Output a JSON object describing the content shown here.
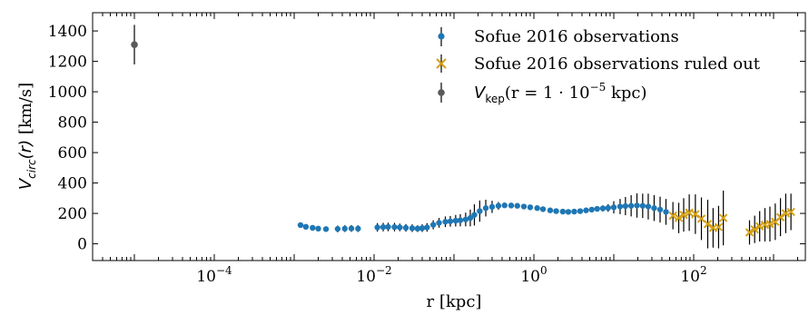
{
  "chart_data": {
    "type": "scatter",
    "xscale": "log",
    "xlim": [
      3e-06,
      2500
    ],
    "ylim": [
      -110,
      1520
    ],
    "xlabel": "r [kpc]",
    "ylabel": "V_circ(r) [km/s]",
    "ylabel_parts": {
      "main": "V",
      "sub": "circ",
      "rest": "(r) [km/s]"
    },
    "yticks": [
      0,
      200,
      400,
      600,
      800,
      1000,
      1200,
      1400
    ],
    "xticks": [
      {
        "value": 0.0001,
        "base": "10",
        "exp": "−4"
      },
      {
        "value": 0.01,
        "base": "10",
        "exp": "−2"
      },
      {
        "value": 1,
        "base": "10",
        "exp": "0"
      },
      {
        "value": 100,
        "base": "10",
        "exp": "2"
      }
    ],
    "legend_position": "top-right",
    "series": [
      {
        "name": "Sofue 2016 observations",
        "color": "#1f77b4",
        "marker": "circle",
        "points": [
          [
            0.0012,
            123,
            0
          ],
          [
            0.0014,
            112,
            0
          ],
          [
            0.0017,
            105,
            0
          ],
          [
            0.002,
            100,
            0
          ],
          [
            0.0025,
            97,
            0
          ],
          [
            0.0035,
            98,
            22
          ],
          [
            0.0043,
            100,
            22
          ],
          [
            0.0052,
            101,
            22
          ],
          [
            0.0063,
            100,
            22
          ],
          [
            0.011,
            108,
            28
          ],
          [
            0.013,
            110,
            28
          ],
          [
            0.015,
            111,
            28
          ],
          [
            0.018,
            110,
            28
          ],
          [
            0.021,
            108,
            25
          ],
          [
            0.025,
            105,
            25
          ],
          [
            0.03,
            103,
            25
          ],
          [
            0.035,
            100,
            22
          ],
          [
            0.04,
            103,
            25
          ],
          [
            0.046,
            108,
            28
          ],
          [
            0.055,
            125,
            30
          ],
          [
            0.065,
            138,
            32
          ],
          [
            0.078,
            145,
            35
          ],
          [
            0.09,
            148,
            35
          ],
          [
            0.105,
            152,
            38
          ],
          [
            0.12,
            155,
            40
          ],
          [
            0.14,
            160,
            45
          ],
          [
            0.16,
            170,
            55
          ],
          [
            0.18,
            190,
            70
          ],
          [
            0.21,
            215,
            70
          ],
          [
            0.25,
            235,
            55
          ],
          [
            0.3,
            243,
            40
          ],
          [
            0.36,
            250,
            25
          ],
          [
            0.43,
            253,
            15
          ],
          [
            0.52,
            252,
            10
          ],
          [
            0.62,
            250,
            8
          ],
          [
            0.75,
            245,
            6
          ],
          [
            0.9,
            240,
            6
          ],
          [
            1.1,
            235,
            5
          ],
          [
            1.3,
            228,
            5
          ],
          [
            1.6,
            220,
            5
          ],
          [
            1.9,
            215,
            5
          ],
          [
            2.3,
            212,
            5
          ],
          [
            2.7,
            210,
            5
          ],
          [
            3.2,
            212,
            5
          ],
          [
            3.8,
            215,
            5
          ],
          [
            4.5,
            220,
            5
          ],
          [
            5.3,
            225,
            10
          ],
          [
            6.2,
            230,
            15
          ],
          [
            7.3,
            233,
            20
          ],
          [
            8.5,
            236,
            25
          ],
          [
            10.0,
            240,
            40
          ],
          [
            12.0,
            245,
            50
          ],
          [
            14.0,
            248,
            60
          ],
          [
            16.5,
            250,
            70
          ],
          [
            19.5,
            252,
            80
          ],
          [
            23.0,
            250,
            80
          ],
          [
            27.0,
            245,
            85
          ],
          [
            32.0,
            235,
            85
          ],
          [
            38.0,
            225,
            85
          ],
          [
            45.0,
            210,
            85
          ]
        ]
      },
      {
        "name": "Sofue 2016 observations ruled out",
        "color": "#d4a017",
        "marker": "x",
        "points": [
          [
            55,
            185,
            90
          ],
          [
            65,
            170,
            100
          ],
          [
            75,
            190,
            110
          ],
          [
            88,
            205,
            120
          ],
          [
            105,
            195,
            130
          ],
          [
            125,
            165,
            140
          ],
          [
            150,
            130,
            160
          ],
          [
            175,
            105,
            130
          ],
          [
            205,
            110,
            140
          ],
          [
            235,
            170,
            180
          ],
          [
            500,
            75,
            80
          ],
          [
            580,
            95,
            90
          ],
          [
            670,
            115,
            100
          ],
          [
            780,
            125,
            110
          ],
          [
            900,
            130,
            115
          ],
          [
            1050,
            145,
            120
          ],
          [
            1220,
            175,
            125
          ],
          [
            1420,
            200,
            130
          ],
          [
            1650,
            210,
            120
          ]
        ]
      },
      {
        "name_parts": {
          "main": "V",
          "sub": "kep",
          "rest": "(r = 1 · 10",
          "sup": "−5",
          "end": " kpc)"
        },
        "color": "#5a5a5a",
        "marker": "circle",
        "points": [
          [
            1e-05,
            1310,
            130
          ]
        ]
      }
    ]
  }
}
